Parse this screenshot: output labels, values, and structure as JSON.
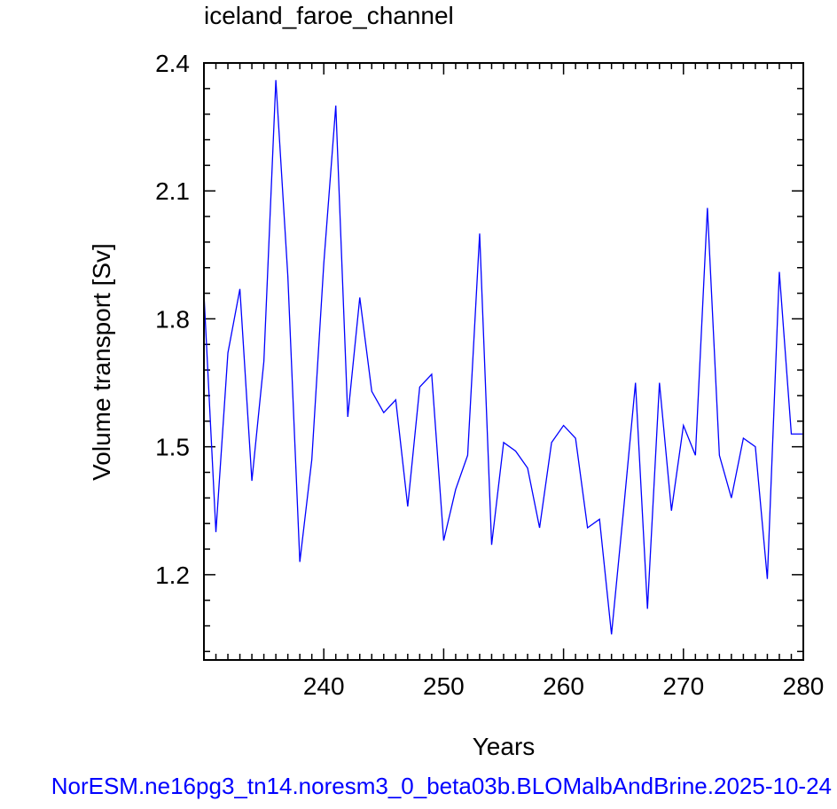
{
  "chart_data": {
    "type": "line",
    "title": "iceland_faroe_channel",
    "xlabel": "Years",
    "ylabel": "Volume transport [Sv]",
    "xlim": [
      230,
      280
    ],
    "ylim": [
      1.0,
      2.4
    ],
    "x_ticks": [
      "240",
      "250",
      "260",
      "270",
      "280"
    ],
    "y_ticks": [
      "1.2",
      "1.5",
      "1.8",
      "2.1",
      "2.4"
    ],
    "grid": false,
    "series": [
      {
        "color": "#0000ff",
        "x": [
          230,
          231,
          232,
          233,
          234,
          235,
          236,
          237,
          238,
          239,
          240,
          241,
          242,
          243,
          244,
          245,
          246,
          247,
          248,
          249,
          250,
          251,
          252,
          253,
          254,
          255,
          256,
          257,
          258,
          259,
          260,
          261,
          262,
          263,
          264,
          265,
          266,
          267,
          268,
          269,
          270,
          271,
          272,
          273,
          274,
          275,
          276,
          277,
          278,
          279,
          280
        ],
        "y": [
          1.86,
          1.3,
          1.72,
          1.87,
          1.42,
          1.7,
          2.36,
          1.9,
          1.23,
          1.47,
          1.93,
          2.3,
          1.57,
          1.85,
          1.63,
          1.58,
          1.61,
          1.36,
          1.64,
          1.67,
          1.28,
          1.4,
          1.48,
          2.0,
          1.27,
          1.51,
          1.49,
          1.45,
          1.31,
          1.51,
          1.55,
          1.52,
          1.31,
          1.33,
          1.06,
          1.35,
          1.65,
          1.12,
          1.65,
          1.35,
          1.55,
          1.48,
          2.06,
          1.48,
          1.38,
          1.52,
          1.5,
          1.19,
          1.91,
          1.53,
          1.53
        ]
      }
    ]
  },
  "footer": {
    "caption": "NorESM.ne16pg3_tn14.noresm3_0_beta03b.BLOMalbAndBrine.2025-10-24",
    "caption_color": "#0000ff"
  }
}
